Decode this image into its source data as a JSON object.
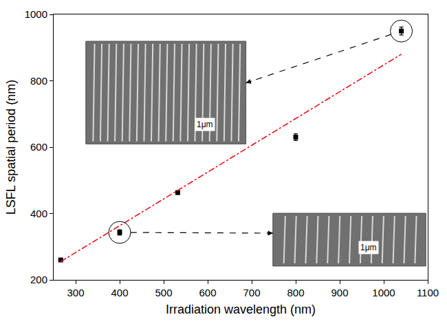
{
  "chart_data": {
    "type": "scatter",
    "x_label": "Irradiation wavelength (nm)",
    "y_label": "LSFL spatial period (nm)",
    "series": [
      {
        "type": "scatter",
        "color": "#000000",
        "marker": "square",
        "x": [
          266,
          400,
          532,
          800,
          1040
        ],
        "values": [
          260,
          343,
          463,
          630,
          950
        ],
        "error": [
          5,
          8,
          5,
          10,
          12
        ]
      },
      {
        "type": "line",
        "color": "#e8141c",
        "line_style": "dashdot",
        "x": [
          266,
          1040
        ],
        "values": [
          255,
          880
        ]
      }
    ],
    "xlim": [
      250,
      1100
    ],
    "xticks": [
      300,
      400,
      500,
      600,
      700,
      800,
      900,
      1000,
      1100
    ],
    "ylim": [
      200,
      1000
    ],
    "yticks": [
      200,
      400,
      600,
      800,
      1000
    ],
    "grid": false,
    "annotations": [
      "1μm",
      "1μm"
    ]
  }
}
